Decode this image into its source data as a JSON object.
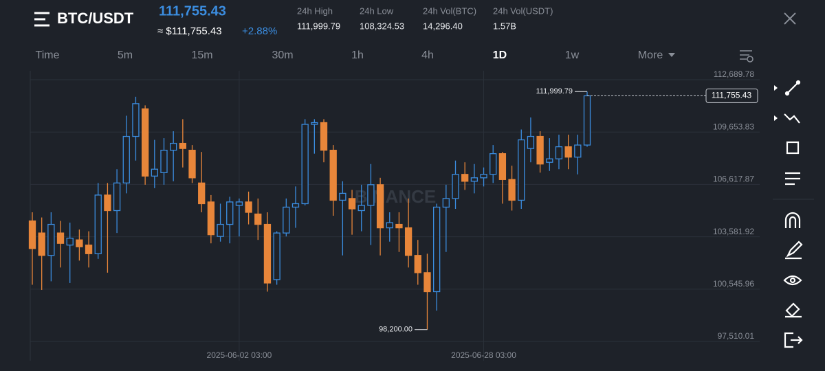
{
  "header": {
    "pair": "BTC/USDT",
    "price": "111,755.43",
    "price_usd": "≈ $111,755.43",
    "change": "+2.88%",
    "stats": [
      {
        "label": "24h High",
        "value": "111,999.79"
      },
      {
        "label": "24h Low",
        "value": "108,324.53"
      },
      {
        "label": "24h Vol(BTC)",
        "value": "14,296.40"
      },
      {
        "label": "24h Vol(USDT)",
        "value": "1.57B"
      }
    ]
  },
  "tabs": {
    "items": [
      "Time",
      "5m",
      "15m",
      "30m",
      "1h",
      "4h",
      "1D",
      "1w",
      "More"
    ],
    "active": "1D"
  },
  "chart_data": {
    "type": "candlestick",
    "watermark": "BINANCE",
    "up_color": "#3b8de0",
    "down_color": "#e8863a",
    "grid": true,
    "categories": [
      null,
      null,
      null,
      null,
      null,
      null,
      null,
      null,
      null,
      null,
      null,
      null,
      null,
      null,
      null,
      null,
      null,
      null,
      null,
      null,
      null,
      null,
      "2025-06-02 03:00",
      null,
      null,
      null,
      null,
      null,
      null,
      null,
      null,
      null,
      null,
      null,
      null,
      null,
      null,
      null,
      null,
      null,
      null,
      null,
      null,
      null,
      null,
      null,
      null,
      null,
      "2025-06-28 03:00",
      null,
      null,
      null,
      null,
      null,
      null,
      null,
      null,
      null,
      null,
      null
    ],
    "open": [
      104500,
      103800,
      102500,
      103800,
      103100,
      103400,
      103100,
      102600,
      106000,
      105100,
      106700,
      109400,
      111000,
      107100,
      107300,
      108600,
      109000,
      108600,
      106700,
      105600,
      103600,
      104300,
      105400,
      105600,
      104900,
      104300,
      101100,
      103800,
      105300,
      105500,
      110100,
      110200,
      108600,
      105700,
      105800,
      105100,
      105400,
      106600,
      104100,
      104300,
      104100,
      102500,
      101500,
      100400,
      105300,
      105800,
      107200,
      106800,
      107000,
      107200,
      108400,
      106900,
      105700,
      108700,
      109400,
      107900,
      108100,
      108800,
      108200,
      108900
    ],
    "high": [
      105000,
      104700,
      105000,
      104500,
      104400,
      104000,
      103900,
      106700,
      106700,
      107500,
      110600,
      111700,
      111200,
      109200,
      109300,
      109700,
      110400,
      108900,
      108500,
      106000,
      105500,
      105900,
      105800,
      106200,
      105800,
      105000,
      103900,
      105800,
      106500,
      110400,
      110400,
      110400,
      108900,
      106800,
      106300,
      106600,
      107800,
      107000,
      105000,
      105000,
      105800,
      103400,
      102600,
      105500,
      106600,
      108000,
      107900,
      107800,
      107600,
      108900,
      108500,
      107700,
      109800,
      110500,
      109700,
      109300,
      109500,
      109500,
      109500,
      111999.79
    ],
    "low": [
      100800,
      100500,
      101000,
      101800,
      100900,
      102200,
      101800,
      102300,
      101500,
      103800,
      106100,
      108000,
      106600,
      106400,
      106600,
      106800,
      107600,
      106700,
      105000,
      103200,
      103300,
      103200,
      103600,
      104300,
      103400,
      100400,
      100800,
      103600,
      104100,
      105400,
      108400,
      107900,
      104800,
      102500,
      103700,
      103900,
      103100,
      102500,
      103300,
      102700,
      101800,
      100800,
      98200,
      99300,
      102700,
      105200,
      106300,
      106100,
      106500,
      106700,
      105500,
      105100,
      105200,
      107900,
      107300,
      107400,
      107500,
      107500,
      107200,
      108800
    ],
    "close": [
      102900,
      102500,
      104300,
      103200,
      103500,
      103000,
      102600,
      106000,
      105100,
      106700,
      109400,
      111300,
      107100,
      107500,
      108600,
      109000,
      108700,
      107000,
      105500,
      103700,
      104300,
      105600,
      105600,
      105000,
      104300,
      100900,
      103800,
      105300,
      105500,
      110100,
      110200,
      108600,
      105700,
      106100,
      105200,
      105400,
      106600,
      104100,
      104400,
      104100,
      102500,
      101500,
      100400,
      105300,
      105800,
      107200,
      106800,
      107000,
      107200,
      108400,
      106900,
      105700,
      109200,
      109400,
      107800,
      108100,
      108800,
      108200,
      108900,
      111755.43
    ],
    "ylim": [
      96993,
      113207
    ],
    "yticks": [
      {
        "value": 97510.01,
        "label": "97,510.01"
      },
      {
        "value": 100545.96,
        "label": "100,545.96"
      },
      {
        "value": 103581.92,
        "label": "103,581.92"
      },
      {
        "value": 106617.87,
        "label": "106,617.87"
      },
      {
        "value": 109653.83,
        "label": "109,653.83"
      },
      {
        "value": 112689.78,
        "label": "112,689.78"
      }
    ],
    "high_label": {
      "value": 111999.79,
      "label": "111,999.79"
    },
    "low_label": {
      "value": 98200,
      "label": "98,200.00"
    },
    "last_price": {
      "value": 111755.43,
      "label": "111,755.43"
    }
  }
}
